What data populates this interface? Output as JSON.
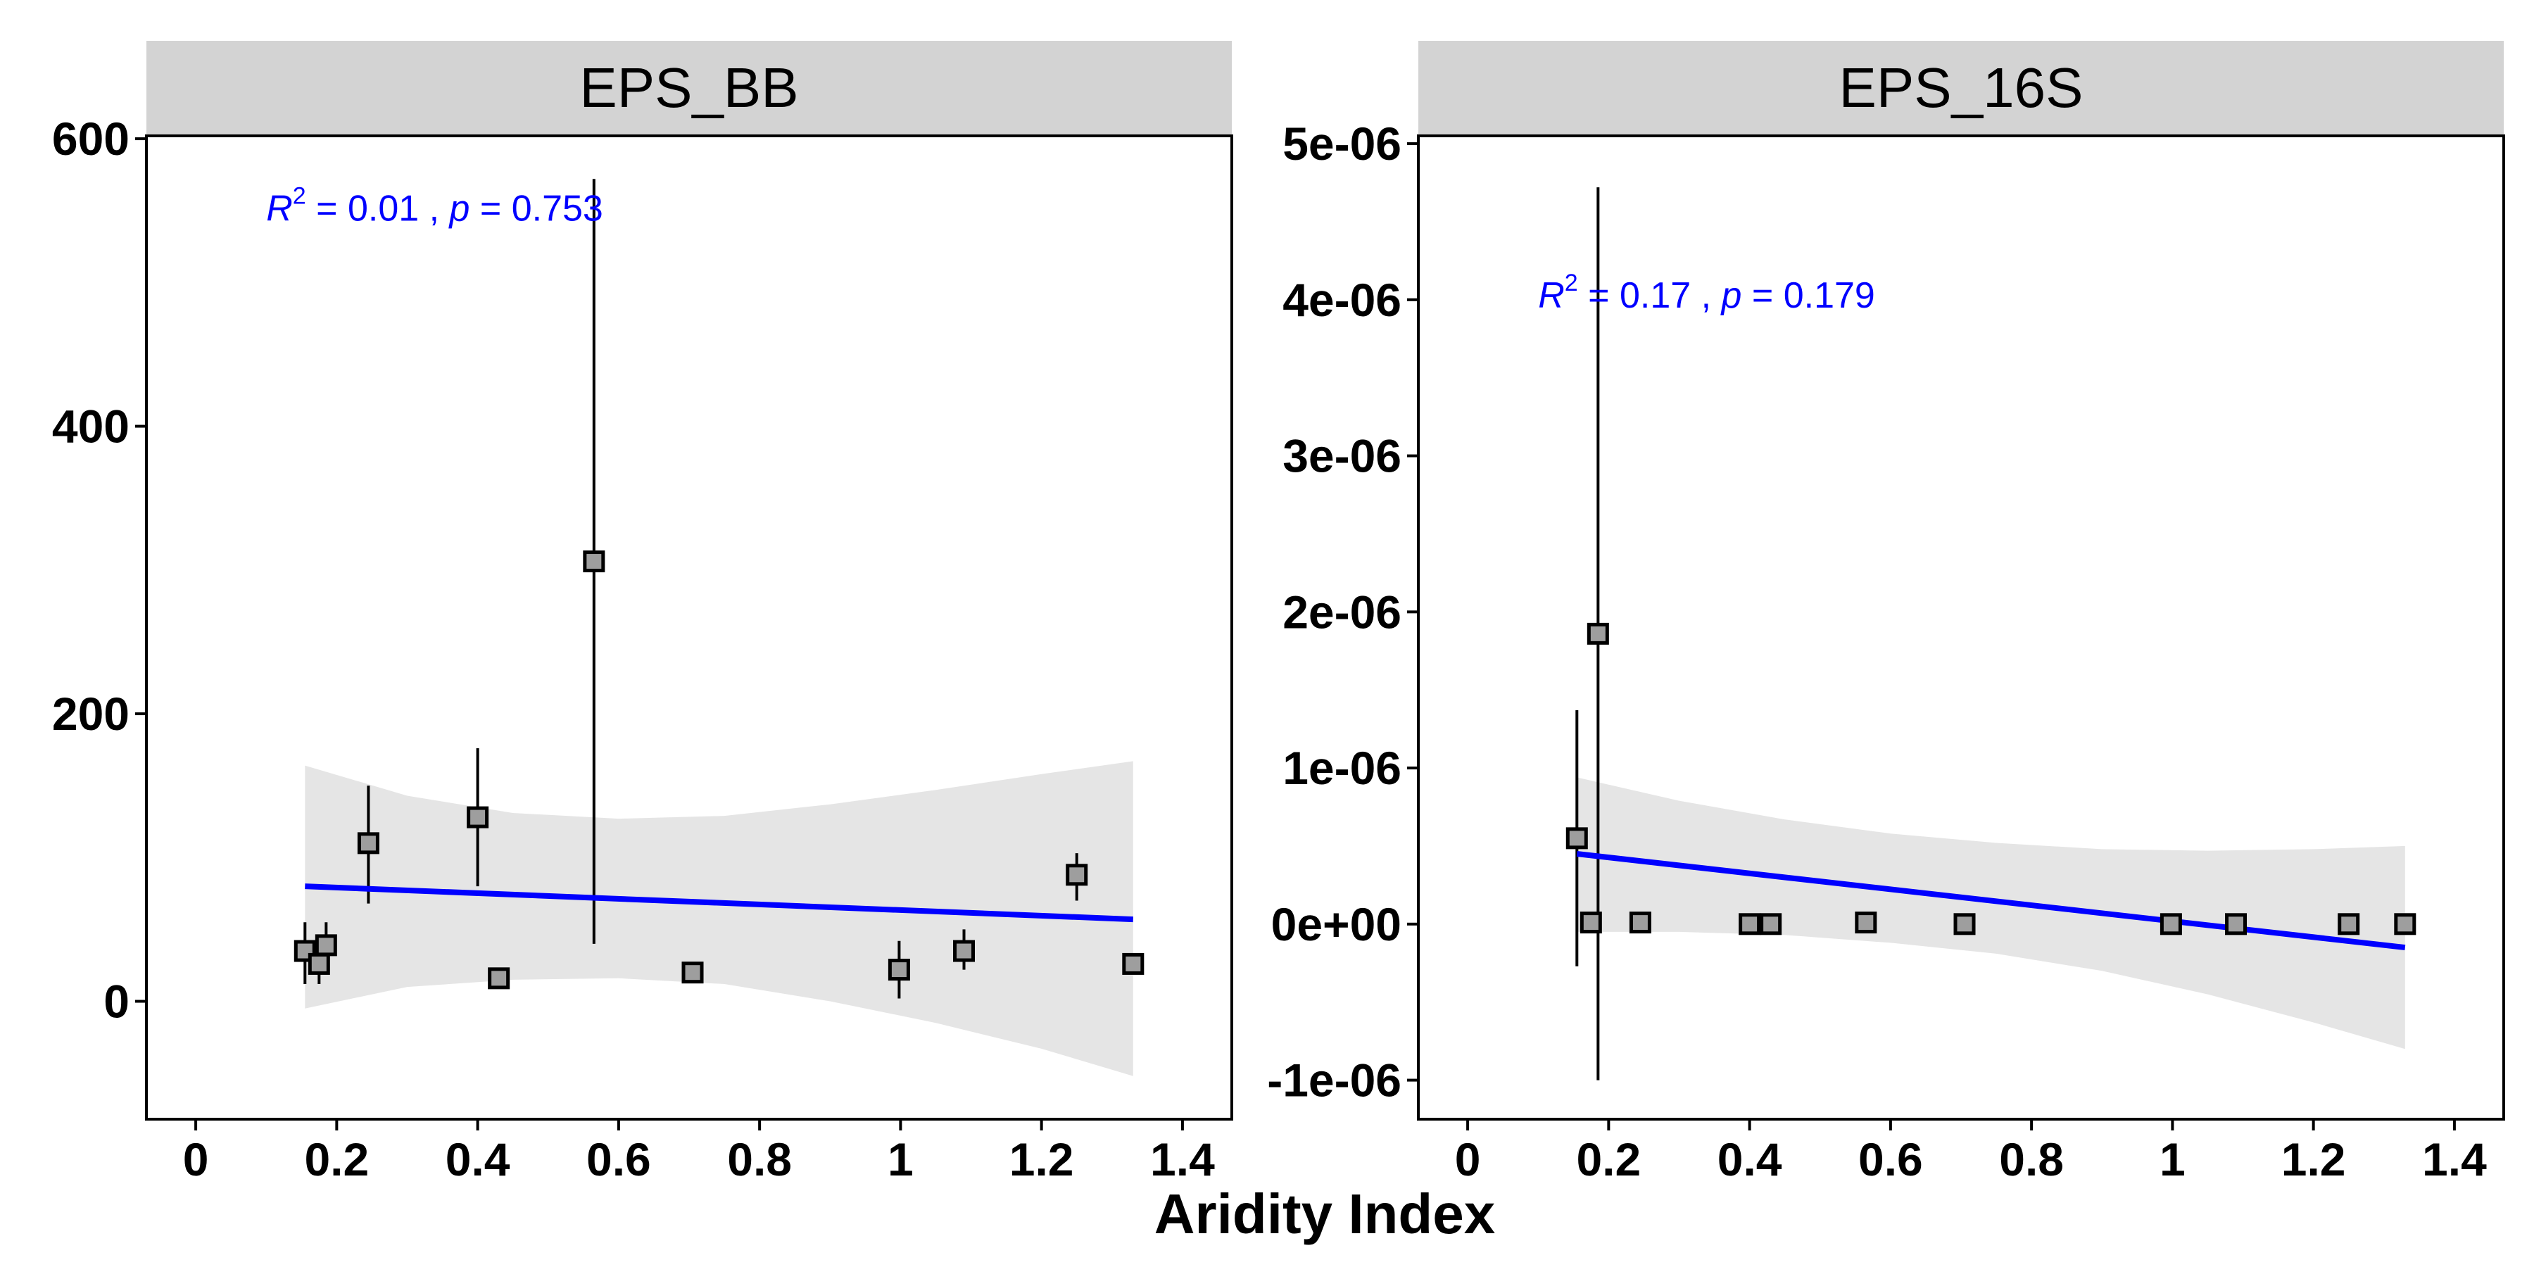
{
  "xlabel": "Aridity Index",
  "chart_data": [
    {
      "type": "scatter",
      "panel": "EPS_BB",
      "title": "",
      "xlabel": "Aridity Index",
      "ylabel": "",
      "xlim": [
        -0.07,
        1.47
      ],
      "ylim": [
        -82,
        602
      ],
      "x_ticks": [
        0,
        0.2,
        0.4,
        0.6,
        0.8,
        1,
        1.2,
        1.4
      ],
      "x_tick_labels": [
        "0",
        "0.2",
        "0.4",
        "0.6",
        "0.8",
        "1",
        "1.2",
        "1.4"
      ],
      "y_ticks": [
        0,
        200,
        400,
        600
      ],
      "y_tick_labels": [
        "0",
        "200",
        "400",
        "600"
      ],
      "grid": false,
      "points": [
        {
          "x": 0.155,
          "y": 35,
          "lo": 12,
          "hi": 55
        },
        {
          "x": 0.175,
          "y": 26,
          "lo": 12,
          "hi": 40
        },
        {
          "x": 0.185,
          "y": 39,
          "lo": 22,
          "hi": 55
        },
        {
          "x": 0.245,
          "y": 110,
          "lo": 68,
          "hi": 150
        },
        {
          "x": 0.4,
          "y": 128,
          "lo": 80,
          "hi": 176
        },
        {
          "x": 0.43,
          "y": 16,
          "lo": 10,
          "hi": 22
        },
        {
          "x": 0.565,
          "y": 306,
          "lo": 40,
          "hi": 572
        },
        {
          "x": 0.705,
          "y": 20,
          "lo": 16,
          "hi": 24
        },
        {
          "x": 0.998,
          "y": 22,
          "lo": 2,
          "hi": 42
        },
        {
          "x": 1.09,
          "y": 35,
          "lo": 22,
          "hi": 50
        },
        {
          "x": 1.25,
          "y": 88,
          "lo": 70,
          "hi": 103
        },
        {
          "x": 1.33,
          "y": 26,
          "lo": 22,
          "hi": 30
        }
      ],
      "fit": {
        "x": [
          0.155,
          1.33
        ],
        "y": [
          80,
          57
        ]
      },
      "ci_band": {
        "x": [
          0.155,
          0.3,
          0.45,
          0.6,
          0.75,
          0.9,
          1.05,
          1.2,
          1.33
        ],
        "lower": [
          -5,
          10,
          15,
          16,
          12,
          0,
          -15,
          -33,
          -52
        ],
        "upper": [
          164,
          143,
          131,
          127,
          129,
          137,
          147,
          158,
          167
        ]
      },
      "annotation": {
        "r2_label": "R",
        "r2_sup": "2",
        "r2_value": " = 0.01 , ",
        "p_label": "p",
        "p_value": " = 0.753",
        "x": 0.1,
        "y": 543
      },
      "colors": {
        "fit_line": "#0000ff",
        "band": "#e5e5e5",
        "point_fill": "#9e9e9e",
        "annotation": "#0000ff",
        "strip": "#d3d3d3"
      }
    },
    {
      "type": "scatter",
      "panel": "EPS_16S",
      "title": "",
      "xlabel": "Aridity Index",
      "ylabel": "",
      "xlim": [
        -0.07,
        1.47
      ],
      "ylim": [
        -1.25e-06,
        5.05e-06
      ],
      "x_ticks": [
        0,
        0.2,
        0.4,
        0.6,
        0.8,
        1,
        1.2,
        1.4
      ],
      "x_tick_labels": [
        "0",
        "0.2",
        "0.4",
        "0.6",
        "0.8",
        "1",
        "1.2",
        "1.4"
      ],
      "y_ticks": [
        -1e-06,
        0,
        1e-06,
        2e-06,
        3e-06,
        4e-06,
        5e-06
      ],
      "y_tick_labels": [
        "-1e-06",
        "0e+00",
        "1e-06",
        "2e-06",
        "3e-06",
        "4e-06",
        "5e-06"
      ],
      "grid": false,
      "points": [
        {
          "x": 0.155,
          "y": 5.5e-07,
          "lo": -2.7e-07,
          "hi": 1.37e-06
        },
        {
          "x": 0.175,
          "y": 1e-08,
          "lo": 0,
          "hi": 2e-08
        },
        {
          "x": 0.185,
          "y": 1.86e-06,
          "lo": -1e-06,
          "hi": 4.72e-06
        },
        {
          "x": 0.245,
          "y": 1e-08,
          "lo": 0,
          "hi": 2e-08
        },
        {
          "x": 0.4,
          "y": 0,
          "lo": 0,
          "hi": 1e-08
        },
        {
          "x": 0.43,
          "y": 0,
          "lo": 0,
          "hi": 1e-08
        },
        {
          "x": 0.565,
          "y": 1e-08,
          "lo": 0,
          "hi": 2e-08
        },
        {
          "x": 0.705,
          "y": 0,
          "lo": 0,
          "hi": 1e-08
        },
        {
          "x": 0.998,
          "y": 0,
          "lo": 0,
          "hi": 1e-08
        },
        {
          "x": 1.09,
          "y": 0,
          "lo": 0,
          "hi": 1e-08
        },
        {
          "x": 1.25,
          "y": 0,
          "lo": 0,
          "hi": 1e-08
        },
        {
          "x": 1.33,
          "y": 0,
          "lo": 0,
          "hi": 1e-08
        }
      ],
      "fit": {
        "x": [
          0.155,
          1.33
        ],
        "y": [
          4.5e-07,
          -1.5e-07
        ]
      },
      "ci_band": {
        "x": [
          0.155,
          0.3,
          0.45,
          0.6,
          0.75,
          0.9,
          1.05,
          1.2,
          1.33
        ],
        "lower": [
          -5e-08,
          -5e-08,
          -7e-08,
          -1.2e-07,
          -1.9e-07,
          -3e-07,
          -4.5e-07,
          -6.3e-07,
          -8e-07
        ],
        "upper": [
          9.4e-07,
          7.9e-07,
          6.7e-07,
          5.8e-07,
          5.2e-07,
          4.8e-07,
          4.7e-07,
          4.8e-07,
          5e-07
        ]
      },
      "annotation": {
        "r2_label": "R",
        "r2_sup": "2",
        "r2_value": " = 0.17 , ",
        "p_label": "p",
        "p_value": " = 0.179",
        "x": 0.1,
        "y": 3.95e-06
      },
      "colors": {
        "fit_line": "#0000ff",
        "band": "#e5e5e5",
        "point_fill": "#9e9e9e",
        "annotation": "#0000ff",
        "strip": "#d3d3d3"
      }
    }
  ]
}
